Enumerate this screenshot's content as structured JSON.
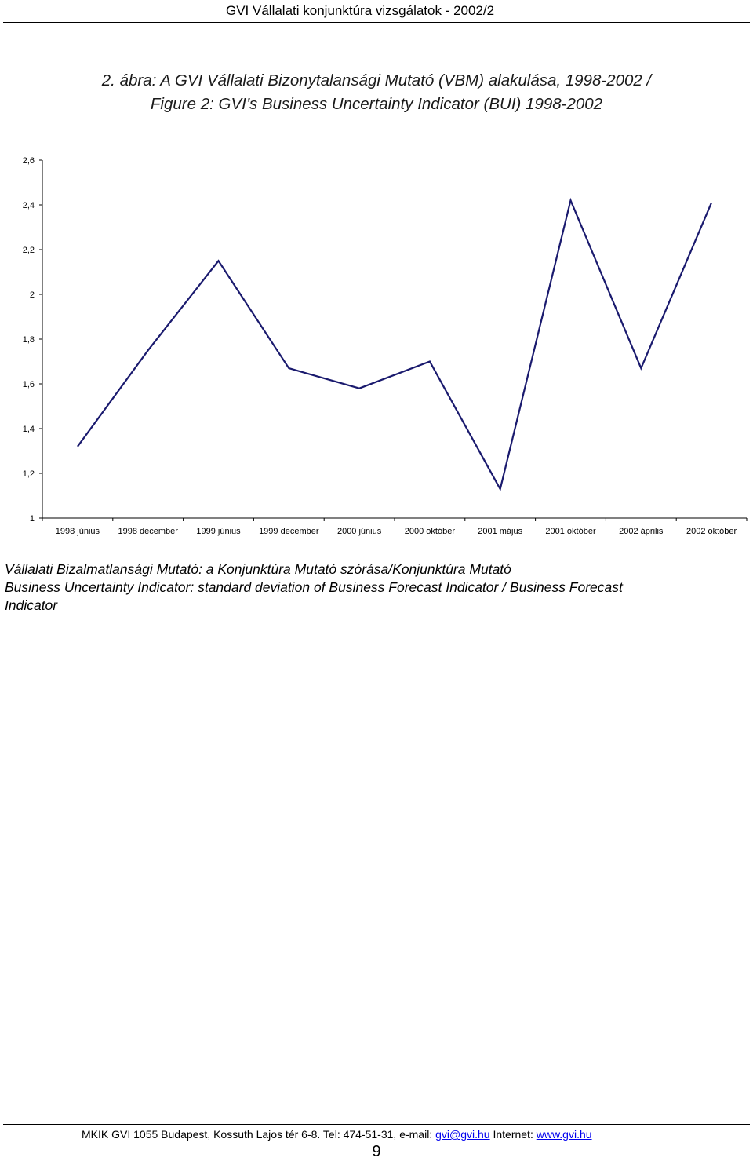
{
  "header": {
    "title": "GVI Vállalati konjunktúra vizsgálatok - 2002/2"
  },
  "figure": {
    "title_line1": "2. ábra: A GVI Vállalati Bizonytalansági Mutató (VBM) alakulása, 1998-2002 /",
    "title_line2": "Figure 2: GVI’s Business Uncertainty Indicator (BUI) 1998-2002"
  },
  "chart_data": {
    "type": "line",
    "title": "",
    "xlabel": "",
    "ylabel": "",
    "categories": [
      "1998 június",
      "1998 december",
      "1999 június",
      "1999 december",
      "2000 június",
      "2000 október",
      "2001 május",
      "2001 október",
      "2002 április",
      "2002 október"
    ],
    "series": [
      {
        "values": [
          1.32,
          1.75,
          2.15,
          1.67,
          1.58,
          1.7,
          1.13,
          2.42,
          1.67,
          2.41
        ]
      }
    ],
    "ylim": [
      1,
      2.6
    ],
    "yticks": [
      1,
      1.2,
      1.4,
      1.6,
      1.8,
      2,
      2.2,
      2.4,
      2.6
    ],
    "ytick_labels": [
      "1",
      "1,2",
      "1,4",
      "1,6",
      "1,8",
      "2",
      "2,2",
      "2,4",
      "2,6"
    ],
    "grid": false,
    "legend": "none",
    "line_color": "#1a1a6e"
  },
  "caption": {
    "line1": "Vállalati Bizalmatlansági Mutató: a Konjunktúra Mutató szórása/Konjunktúra Mutató",
    "line2": "Business Uncertainty Indicator: standard deviation of Business Forecast Indicator / Business Forecast",
    "line3": "Indicator"
  },
  "footer": {
    "prefix": "MKIK GVI 1055 Budapest, Kossuth Lajos tér 6-8. Tel: 474-51-31, e-mail: ",
    "email": "gvi@gvi.hu",
    "internet_label": " Internet: ",
    "website": "www.gvi.hu",
    "page_number": "9"
  }
}
